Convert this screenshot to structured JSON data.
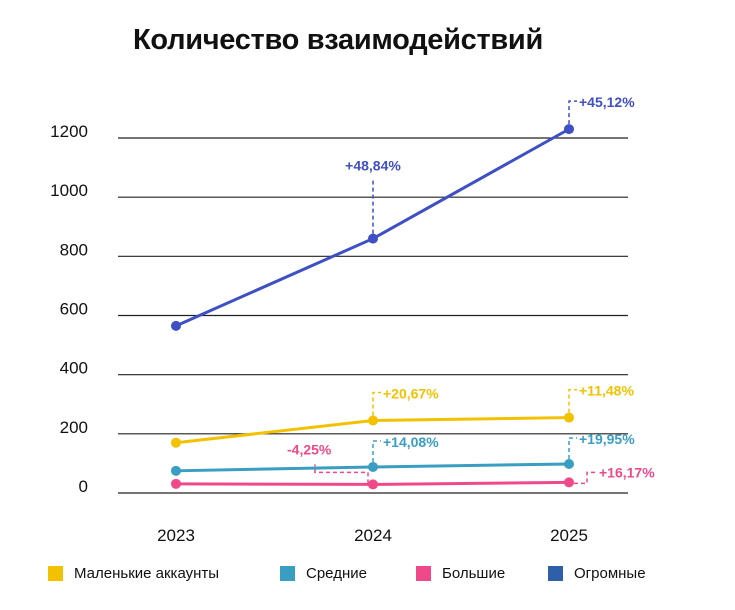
{
  "chart_data": {
    "type": "line",
    "title": "Количество взаимодействий",
    "categories": [
      "2023",
      "2024",
      "2025"
    ],
    "ylim": [
      0,
      1200
    ],
    "yticks": [
      0,
      200,
      400,
      600,
      800,
      1000,
      1200
    ],
    "ytick_labels": [
      "0",
      "200",
      "400",
      "600",
      "800",
      "1000",
      "1200"
    ],
    "grid": true,
    "legend_position": "bottom",
    "series": [
      {
        "name": "Маленькие аккаунты",
        "color": "#F2C200",
        "values": [
          170,
          245,
          255
        ],
        "annotations": [
          "",
          "+20,67%",
          "+11,48%"
        ]
      },
      {
        "name": "Средние",
        "color": "#3A9DC2",
        "values": [
          75,
          88,
          98
        ],
        "annotations": [
          "",
          "+14,08%",
          "+19,95%"
        ]
      },
      {
        "name": "Большие",
        "color": "#F0498A",
        "values": [
          31,
          29,
          36
        ],
        "annotations": [
          "",
          "-4,25%",
          "+16,17%"
        ]
      },
      {
        "name": "Огромные",
        "color": "#3F4FC4",
        "legend_color": "#2E5FA8",
        "values": [
          565,
          860,
          1230
        ],
        "annotations": [
          "",
          "+48,84%",
          "+45,12%"
        ]
      }
    ]
  }
}
